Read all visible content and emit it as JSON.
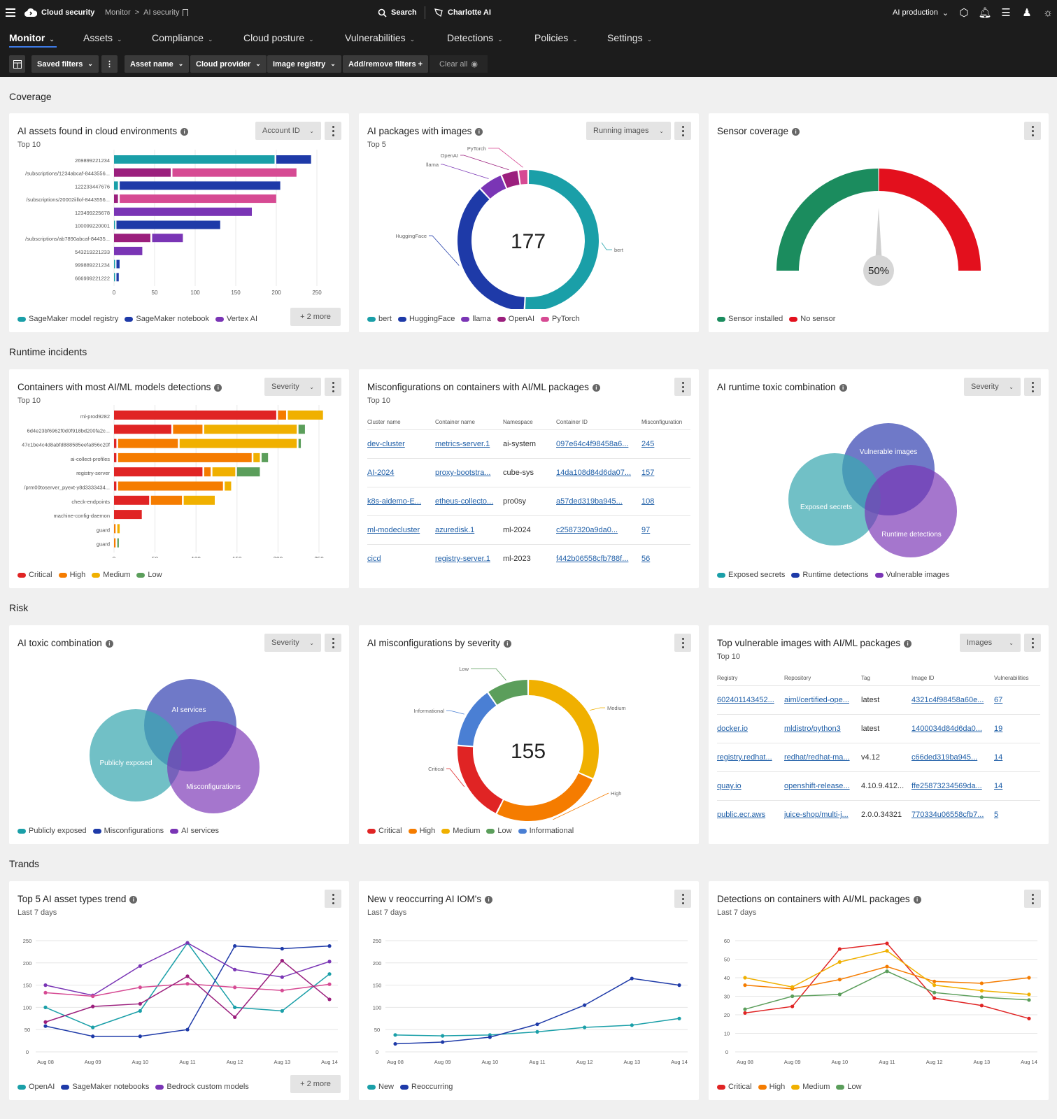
{
  "topbar": {
    "app_name": "Cloud security",
    "breadcrumb": [
      "Monitor",
      "AI security"
    ],
    "search_label": "Search",
    "assistant_label": "Charlotte AI",
    "environment": "AI production"
  },
  "nav": {
    "tabs": [
      {
        "label": "Monitor"
      },
      {
        "label": "Assets"
      },
      {
        "label": "Compliance"
      },
      {
        "label": "Cloud posture"
      },
      {
        "label": "Vulnerabilities"
      },
      {
        "label": "Detections"
      },
      {
        "label": "Policies"
      },
      {
        "label": "Settings"
      }
    ]
  },
  "filters": {
    "saved": "Saved filters",
    "asset_name": "Asset name",
    "cloud_provider": "Cloud provider",
    "image_registry": "Image registry",
    "add_remove": "Add/remove filters +",
    "clear_all": "Clear all"
  },
  "sections": {
    "coverage": "Coverage",
    "runtime": "Runtime incidents",
    "risk": "Risk",
    "trends": "Trands"
  },
  "colors": {
    "teal": "#1a9fa8",
    "blue": "#1e3aa8",
    "purple": "#7a35b5",
    "magenta": "#9b1f7d",
    "pink": "#d64a93",
    "critical": "#e02424",
    "high": "#f57c00",
    "medium": "#f0b000",
    "low": "#5b9e5b",
    "informational": "#4a7fd4",
    "green_gauge": "#1b8c5e",
    "red_gauge": "#e3101d"
  },
  "cards": {
    "ai_assets": {
      "title": "AI assets found in cloud environments",
      "subtitle": "Top 10",
      "select": "Account ID",
      "more": "+ 2 more",
      "legend": [
        "SageMaker model registry",
        "SageMaker notebook",
        "Vertex AI"
      ]
    },
    "ai_packages": {
      "title": "AI packages with images",
      "subtitle": "Top 5",
      "select": "Running images",
      "center": "177",
      "legend": [
        "bert",
        "HuggingFace",
        "llama",
        "OpenAI",
        "PyTorch"
      ]
    },
    "sensor": {
      "title": "Sensor coverage",
      "center": "50%",
      "legend": [
        "Sensor installed",
        "No sensor"
      ]
    },
    "containers_detections": {
      "title": "Containers with most AI/ML models detections",
      "subtitle": "Top 10",
      "select": "Severity",
      "legend": [
        "Critical",
        "High",
        "Medium",
        "Low"
      ]
    },
    "misconfig_containers": {
      "title": "Misconfigurations on containers with AI/ML packages",
      "subtitle": "Top 10",
      "columns": [
        "Cluster name",
        "Container name",
        "Namespace",
        "Container ID",
        "Misconfiguration"
      ],
      "rows": [
        [
          "dev-cluster",
          "metrics-server.1",
          "ai-system",
          "097e64c4f98458a6...",
          "245"
        ],
        [
          "AI-2024",
          "proxy-bootstra...",
          "cube-sys",
          "14da108d84d6da07...",
          "157"
        ],
        [
          "k8s-aidemo-E...",
          "etheus-collecto...",
          "pro0sy",
          "a57ded319ba945...",
          "108"
        ],
        [
          "ml-modecluster",
          "azuredisk.1",
          "ml-2024",
          "c2587320a9da0...",
          "97"
        ],
        [
          "cicd",
          "registry-server.1",
          "ml-2023",
          "f442b06558cfb788f...",
          "56"
        ]
      ]
    },
    "runtime_toxic": {
      "title": "AI runtime toxic combination",
      "select": "Severity",
      "circles": [
        "Vulnerable images",
        "Exposed secrets",
        "Runtime detections"
      ],
      "legend": [
        "Exposed secrets",
        "Runtime detections",
        "Vulnerable images"
      ]
    },
    "ai_toxic": {
      "title": "AI toxic combination",
      "select": "Severity",
      "circles": [
        "AI services",
        "Publicly exposed",
        "Misconfigurations"
      ],
      "legend": [
        "Publicly exposed",
        "Misconfigurations",
        "AI services"
      ]
    },
    "misconfig_severity": {
      "title": "AI misconfigurations by severity",
      "center": "155",
      "legend": [
        "Critical",
        "High",
        "Medium",
        "Low",
        "Informational"
      ]
    },
    "vuln_images": {
      "title": "Top vulnerable images with AI/ML packages",
      "subtitle": "Top 10",
      "select": "Images",
      "columns": [
        "Registry",
        "Repository",
        "Tag",
        "Image ID",
        "Vulnerabilities"
      ],
      "rows": [
        [
          "602401143452...",
          "aiml/certified-ope...",
          "latest",
          "4321c4f98458a60e...",
          "67"
        ],
        [
          "docker.io",
          "mldistro/python3",
          "latest",
          "1400034d84d6da0...",
          "19"
        ],
        [
          "registry.redhat...",
          "redhat/redhat-ma...",
          "v4.12",
          "c66ded319ba945...",
          "14"
        ],
        [
          "quay.io",
          "openshift-release...",
          "4.10.9.412...",
          "ffe25873234569da...",
          "14"
        ],
        [
          "public.ecr.aws",
          "juice-shop/multi-j...",
          "2.0.0.34321",
          "770334u06558cfb7...",
          "5"
        ]
      ]
    },
    "asset_trend": {
      "title": "Top 5 AI asset types trend",
      "subtitle": "Last 7 days",
      "more": "+ 2 more",
      "legend": [
        "OpenAI",
        "SageMaker notebooks",
        "Bedrock custom models"
      ]
    },
    "iom_trend": {
      "title": "New v reoccurring AI IOM's",
      "subtitle": "Last 7 days",
      "legend": [
        "New",
        "Reoccurring"
      ]
    },
    "det_trend": {
      "title": "Detections on containers with AI/ML packages",
      "subtitle": "Last 7 days",
      "legend": [
        "Critical",
        "High",
        "Medium",
        "Low"
      ]
    }
  },
  "chart_data": [
    {
      "id": "ai_assets",
      "type": "bar",
      "orientation": "horizontal",
      "stacked": true,
      "categories": [
        "269899221234",
        "/subscriptions/1234abcaf-8443556...",
        "122233447676",
        "/subscriptions/20002iillof-8443556...",
        "123499225678",
        "100099220001",
        "/subscriptions/ab7890abcaf-84435...",
        "543219221233",
        "999889221234",
        "666999221222"
      ],
      "segments": [
        [
          {
            "v": 200,
            "c": "teal"
          },
          {
            "v": 45,
            "c": "blue"
          }
        ],
        [
          {
            "v": 72,
            "c": "magenta"
          },
          {
            "v": 155,
            "c": "pink"
          }
        ],
        [
          {
            "v": 7,
            "c": "teal"
          },
          {
            "v": 200,
            "c": "blue"
          }
        ],
        [
          {
            "v": 7,
            "c": "magenta"
          },
          {
            "v": 195,
            "c": "pink"
          }
        ],
        [
          {
            "v": 172,
            "c": "purple"
          }
        ],
        [
          {
            "v": 3,
            "c": "teal"
          },
          {
            "v": 130,
            "c": "blue"
          }
        ],
        [
          {
            "v": 47,
            "c": "magenta"
          },
          {
            "v": 40,
            "c": "purple"
          }
        ],
        [
          {
            "v": 37,
            "c": "purple"
          }
        ],
        [
          {
            "v": 3,
            "c": "teal"
          },
          {
            "v": 6,
            "c": "blue"
          }
        ],
        [
          {
            "v": 3,
            "c": "teal"
          },
          {
            "v": 5,
            "c": "blue"
          }
        ]
      ],
      "xticks": [
        0,
        50,
        100,
        150,
        200,
        250
      ]
    },
    {
      "id": "ai_packages",
      "type": "pie",
      "donut": true,
      "labels": [
        "bert",
        "HuggingFace",
        "llama",
        "OpenAI",
        "PyTorch"
      ],
      "values": [
        90,
        66,
        10,
        7,
        4
      ],
      "colors": [
        "teal",
        "blue",
        "purple",
        "magenta",
        "pink"
      ]
    },
    {
      "id": "sensor",
      "type": "gauge",
      "value": 50,
      "labels": [
        "Sensor installed",
        "No sensor"
      ]
    },
    {
      "id": "containers_detections",
      "type": "bar",
      "orientation": "horizontal",
      "stacked": true,
      "categories": [
        "ml-prod9282",
        "6d4e23bf6962f0d0f918bd200fa2c...",
        "47c1be4c4d8abfd888585eefa856c20f",
        "ai-collect-profiles",
        "registry-server",
        "/prm00toserver_pyext-y8d3333434...",
        "check-endpoints",
        "machine-config-daemon",
        "guard",
        "guard"
      ],
      "segments": [
        [
          {
            "v": 200,
            "c": "critical"
          },
          {
            "v": 12,
            "c": "high"
          },
          {
            "v": 45,
            "c": "medium"
          }
        ],
        [
          {
            "v": 72,
            "c": "critical"
          },
          {
            "v": 38,
            "c": "high"
          },
          {
            "v": 115,
            "c": "medium"
          },
          {
            "v": 10,
            "c": "low"
          }
        ],
        [
          {
            "v": 5,
            "c": "critical"
          },
          {
            "v": 75,
            "c": "high"
          },
          {
            "v": 145,
            "c": "medium"
          },
          {
            "v": 5,
            "c": "low"
          }
        ],
        [
          {
            "v": 5,
            "c": "critical"
          },
          {
            "v": 165,
            "c": "high"
          },
          {
            "v": 10,
            "c": "medium"
          },
          {
            "v": 10,
            "c": "low"
          }
        ],
        [
          {
            "v": 110,
            "c": "critical"
          },
          {
            "v": 10,
            "c": "high"
          },
          {
            "v": 30,
            "c": "medium"
          },
          {
            "v": 30,
            "c": "low"
          }
        ],
        [
          {
            "v": 5,
            "c": "critical"
          },
          {
            "v": 130,
            "c": "high"
          },
          {
            "v": 10,
            "c": "medium"
          }
        ],
        [
          {
            "v": 45,
            "c": "critical"
          },
          {
            "v": 40,
            "c": "high"
          },
          {
            "v": 40,
            "c": "medium"
          }
        ],
        [
          {
            "v": 36,
            "c": "critical"
          }
        ],
        [
          {
            "v": 4,
            "c": "high"
          },
          {
            "v": 5,
            "c": "medium"
          }
        ],
        [
          {
            "v": 4,
            "c": "high"
          },
          {
            "v": 4,
            "c": "low"
          }
        ]
      ],
      "xticks": [
        0,
        50,
        100,
        150,
        200,
        250
      ]
    },
    {
      "id": "misconfig_severity",
      "type": "pie",
      "donut": true,
      "labels": [
        "Medium",
        "High",
        "Critical",
        "Informational",
        "Low"
      ],
      "values": [
        49,
        40,
        29,
        22,
        15
      ],
      "colors": [
        "medium",
        "high",
        "critical",
        "informational",
        "low"
      ]
    },
    {
      "id": "asset_trend",
      "type": "line",
      "x": [
        "Aug 08",
        "Aug 09",
        "Aug 10",
        "Aug 11",
        "Aug 12",
        "Aug 13",
        "Aug 14"
      ],
      "ylim": [
        0,
        250
      ],
      "yticks": [
        0,
        50,
        100,
        150,
        200,
        250
      ],
      "series": [
        {
          "name": "OpenAI",
          "color": "teal",
          "values": [
            100,
            55,
            92,
            245,
            100,
            92,
            175
          ]
        },
        {
          "name": "SageMaker notebooks",
          "color": "blue",
          "values": [
            58,
            35,
            35,
            50,
            238,
            232,
            238
          ]
        },
        {
          "values": [
            150,
            127,
            193,
            245,
            185,
            168,
            203
          ],
          "color": "purple"
        },
        {
          "values": [
            133,
            125,
            145,
            153,
            145,
            138,
            152
          ],
          "color": "pink"
        },
        {
          "values": [
            67,
            102,
            108,
            170,
            78,
            205,
            118
          ],
          "color": "magenta"
        }
      ]
    },
    {
      "id": "iom_trend",
      "type": "line",
      "x": [
        "Aug 08",
        "Aug 09",
        "Aug 10",
        "Aug 11",
        "Aug 12",
        "Aug 13",
        "Aug 14"
      ],
      "ylim": [
        0,
        250
      ],
      "yticks": [
        0,
        50,
        100,
        150,
        200,
        250
      ],
      "series": [
        {
          "name": "New",
          "color": "teal",
          "values": [
            38,
            36,
            38,
            45,
            55,
            60,
            75
          ]
        },
        {
          "name": "Reoccurring",
          "color": "blue",
          "values": [
            18,
            22,
            33,
            62,
            105,
            165,
            150
          ]
        }
      ]
    },
    {
      "id": "det_trend",
      "type": "line",
      "x": [
        "Aug 08",
        "Aug 09",
        "Aug 10",
        "Aug 11",
        "Aug 12",
        "Aug 13",
        "Aug 14"
      ],
      "ylim": [
        0,
        60
      ],
      "yticks": [
        0,
        10,
        20,
        30,
        40,
        50,
        60
      ],
      "series": [
        {
          "name": "Critical",
          "color": "critical",
          "values": [
            21,
            24.5,
            55.5,
            58.5,
            29,
            25,
            18
          ]
        },
        {
          "name": "High",
          "color": "high",
          "values": [
            36,
            34,
            39,
            46,
            38,
            37,
            40
          ]
        },
        {
          "name": "Medium",
          "color": "medium",
          "values": [
            40,
            35,
            48.5,
            54.5,
            36,
            33,
            31
          ]
        },
        {
          "name": "Low",
          "color": "low",
          "values": [
            23,
            30,
            31,
            43.5,
            32,
            29.5,
            28
          ]
        }
      ]
    }
  ]
}
